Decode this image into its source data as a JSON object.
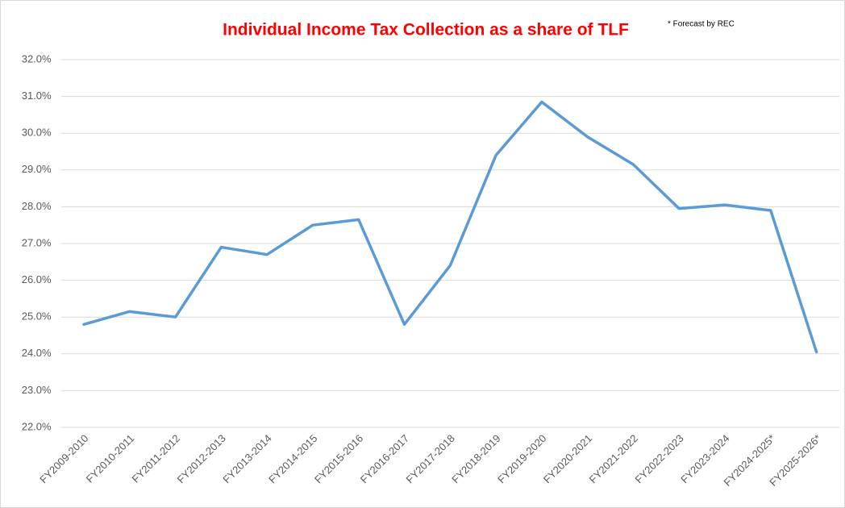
{
  "chart_data": {
    "type": "line",
    "title": "Individual Income Tax Collection as a share of TLF",
    "annotation": "* Forecast by REC",
    "categories": [
      "FY2009-2010",
      "FY2010-2011",
      "FY2011-2012",
      "FY2012-2013",
      "FY2013-2014",
      "FY2014-2015",
      "FY2015-2016",
      "FY2016-2017",
      "FY2017-2018",
      "FY2018-2019",
      "FY2019-2020",
      "FY2020-2021",
      "FY2021-2022",
      "FY2022-2023",
      "FY2023-2024",
      "FY2024-2025*",
      "FY2025-2026*"
    ],
    "series": [
      {
        "name": "Individual Income Tax Collection as a share of TLF",
        "color": "#5b9bd5",
        "values": [
          24.8,
          25.15,
          25.0,
          26.9,
          26.7,
          27.5,
          27.65,
          24.8,
          26.4,
          29.4,
          30.85,
          29.9,
          29.15,
          27.95,
          28.05,
          27.9,
          24.05
        ]
      }
    ],
    "ylim": [
      22,
      32
    ],
    "yticks": [
      {
        "value": 22,
        "label": "22.0%"
      },
      {
        "value": 23,
        "label": "23.0%"
      },
      {
        "value": 24,
        "label": "24.0%"
      },
      {
        "value": 25,
        "label": "25.0%"
      },
      {
        "value": 26,
        "label": "26.0%"
      },
      {
        "value": 27,
        "label": "27.0%"
      },
      {
        "value": 28,
        "label": "28.0%"
      },
      {
        "value": 29,
        "label": "29.0%"
      },
      {
        "value": 30,
        "label": "30.0%"
      },
      {
        "value": 31,
        "label": "31.0%"
      },
      {
        "value": 32,
        "label": "32.0%"
      }
    ],
    "grid": true
  }
}
